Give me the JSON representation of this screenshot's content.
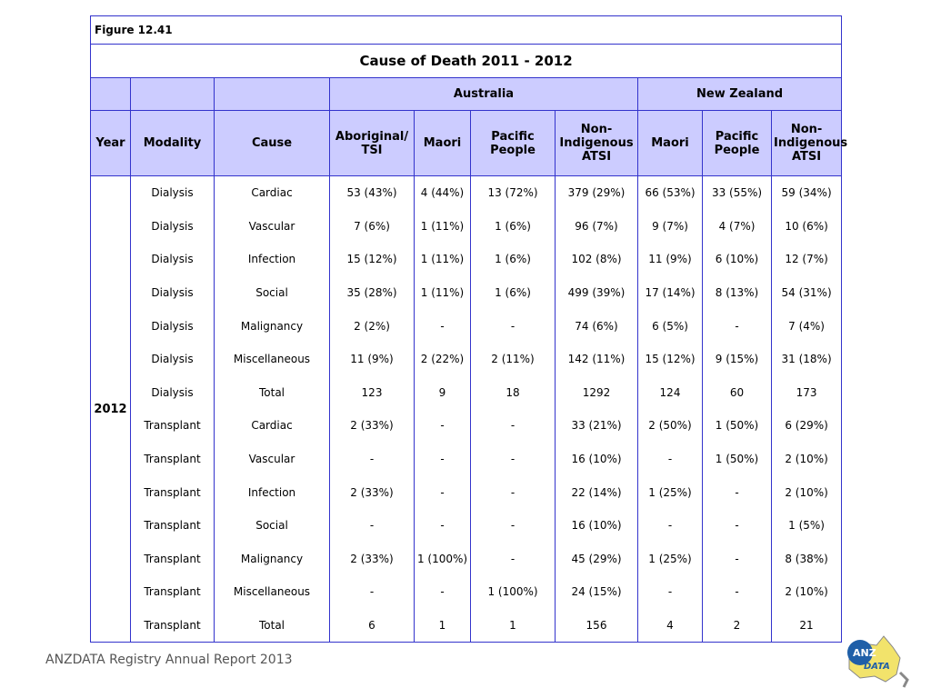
{
  "figure_label": "Figure 12.41",
  "title": "Cause of Death 2011 - 2012",
  "groups": [
    "Australia",
    "New Zealand"
  ],
  "columns": [
    "Year",
    "Modality",
    "Cause",
    "Aboriginal/ TSI",
    "Maori",
    "Pacific People",
    "Non-Indigenous ATSI",
    "Maori",
    "Pacific People",
    "Non-Indigenous ATSI"
  ],
  "year": "2012",
  "rows": [
    [
      "Dialysis",
      "Cardiac",
      "53 (43%)",
      "4 (44%)",
      "13 (72%)",
      "379 (29%)",
      "66 (53%)",
      "33 (55%)",
      "59 (34%)"
    ],
    [
      "Dialysis",
      "Vascular",
      "7 (6%)",
      "1 (11%)",
      "1 (6%)",
      "96 (7%)",
      "9 (7%)",
      "4 (7%)",
      "10 (6%)"
    ],
    [
      "Dialysis",
      "Infection",
      "15 (12%)",
      "1 (11%)",
      "1 (6%)",
      "102 (8%)",
      "11 (9%)",
      "6 (10%)",
      "12 (7%)"
    ],
    [
      "Dialysis",
      "Social",
      "35 (28%)",
      "1 (11%)",
      "1 (6%)",
      "499 (39%)",
      "17 (14%)",
      "8 (13%)",
      "54 (31%)"
    ],
    [
      "Dialysis",
      "Malignancy",
      "2 (2%)",
      "-",
      "-",
      "74 (6%)",
      "6 (5%)",
      "-",
      "7 (4%)"
    ],
    [
      "Dialysis",
      "Miscellaneous",
      "11 (9%)",
      "2 (22%)",
      "2 (11%)",
      "142 (11%)",
      "15 (12%)",
      "9 (15%)",
      "31 (18%)"
    ],
    [
      "Dialysis",
      "Total",
      "123",
      "9",
      "18",
      "1292",
      "124",
      "60",
      "173"
    ],
    [
      "Transplant",
      "Cardiac",
      "2 (33%)",
      "-",
      "-",
      "33 (21%)",
      "2 (50%)",
      "1 (50%)",
      "6 (29%)"
    ],
    [
      "Transplant",
      "Vascular",
      "-",
      "-",
      "-",
      "16 (10%)",
      "-",
      "1 (50%)",
      "2 (10%)"
    ],
    [
      "Transplant",
      "Infection",
      "2 (33%)",
      "-",
      "-",
      "22 (14%)",
      "1 (25%)",
      "-",
      "2 (10%)"
    ],
    [
      "Transplant",
      "Social",
      "-",
      "-",
      "-",
      "16 (10%)",
      "-",
      "-",
      "1 (5%)"
    ],
    [
      "Transplant",
      "Malignancy",
      "2 (33%)",
      "1 (100%)",
      "-",
      "45 (29%)",
      "1 (25%)",
      "-",
      "8 (38%)"
    ],
    [
      "Transplant",
      "Miscellaneous",
      "-",
      "-",
      "1 (100%)",
      "24 (15%)",
      "-",
      "-",
      "2 (10%)"
    ],
    [
      "Transplant",
      "Total",
      "6",
      "1",
      "1",
      "156",
      "4",
      "2",
      "21"
    ]
  ],
  "footer": "ANZDATA Registry Annual Report 2013",
  "logo": [
    "ANZ",
    "DATA"
  ]
}
